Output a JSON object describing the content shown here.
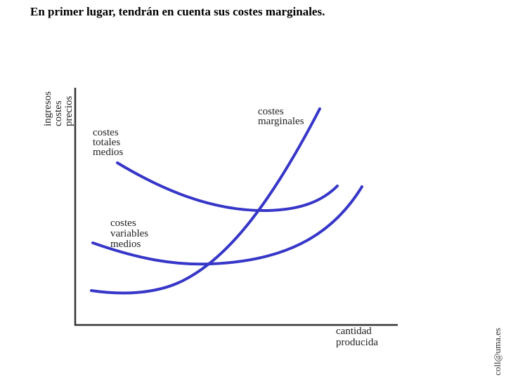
{
  "title": "En primer lugar, tendrán en cuenta sus costes marginales.",
  "y_axis_label": [
    "ingresos",
    "costes",
    "precios"
  ],
  "x_axis_label": [
    "cantidad",
    "producida"
  ],
  "curves": [
    {
      "label": [
        "costes",
        "totales",
        "medios"
      ]
    },
    {
      "label": [
        "costes",
        "marginales"
      ]
    },
    {
      "label": [
        "costes",
        "variables",
        "medios"
      ]
    }
  ],
  "credit": "coll@uma.es"
}
